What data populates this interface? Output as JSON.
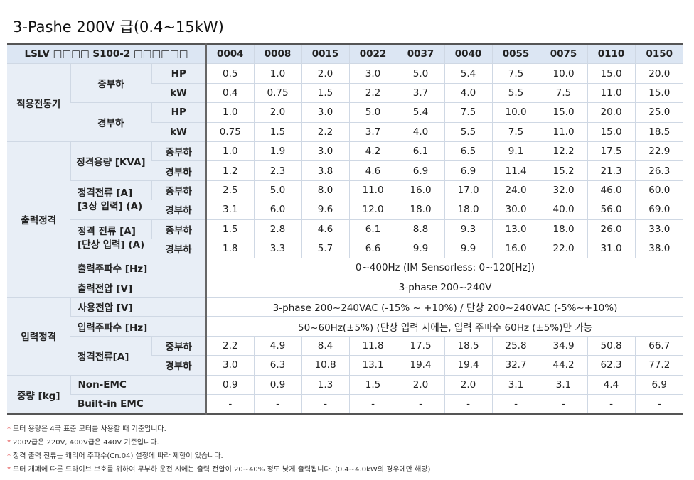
{
  "title": "3-Pashe 200V 급(0.4~15kW)",
  "table": {
    "corner": "LSLV □□□□ S100-2 □□□□□□",
    "models": [
      "0004",
      "0008",
      "0015",
      "0022",
      "0037",
      "0040",
      "0055",
      "0075",
      "0110",
      "0150"
    ],
    "groups": {
      "motor": "적용전동기",
      "output": "출력정격",
      "input": "입력정격",
      "weight": "중량 [kg]"
    },
    "subs": {
      "normal_duty": "중부하",
      "heavy_duty": "경부하",
      "rated_capacity": "정격용량 [KVA]",
      "current_3ph": "정격전류 [A]\n[3상 입력] (A)",
      "current_1ph": "정격 전류 [A]\n[단상 입력] (A)",
      "out_freq": "출력주파수 [Hz]",
      "out_voltage": "출력전압 [V]",
      "in_voltage": "사용전압 [V]",
      "in_freq": "입력주파수 [Hz]",
      "in_current": "정격전류[A]",
      "non_emc": "Non-EMC",
      "builtin_emc": "Built-in EMC",
      "hp": "HP",
      "kw": "kW"
    },
    "rows": {
      "motor_nd_hp": [
        "0.5",
        "1.0",
        "2.0",
        "3.0",
        "5.0",
        "5.4",
        "7.5",
        "10.0",
        "15.0",
        "20.0"
      ],
      "motor_nd_kw": [
        "0.4",
        "0.75",
        "1.5",
        "2.2",
        "3.7",
        "4.0",
        "5.5",
        "7.5",
        "11.0",
        "15.0"
      ],
      "motor_hd_hp": [
        "1.0",
        "2.0",
        "3.0",
        "5.0",
        "5.4",
        "7.5",
        "10.0",
        "15.0",
        "20.0",
        "25.0"
      ],
      "motor_hd_kw": [
        "0.75",
        "1.5",
        "2.2",
        "3.7",
        "4.0",
        "5.5",
        "7.5",
        "11.0",
        "15.0",
        "18.5"
      ],
      "cap_nd": [
        "1.0",
        "1.9",
        "3.0",
        "4.2",
        "6.1",
        "6.5",
        "9.1",
        "12.2",
        "17.5",
        "22.9"
      ],
      "cap_hd": [
        "1.2",
        "2.3",
        "3.8",
        "4.6",
        "6.9",
        "6.9",
        "11.4",
        "15.2",
        "21.3",
        "26.3"
      ],
      "cur3_nd": [
        "2.5",
        "5.0",
        "8.0",
        "11.0",
        "16.0",
        "17.0",
        "24.0",
        "32.0",
        "46.0",
        "60.0"
      ],
      "cur3_hd": [
        "3.1",
        "6.0",
        "9.6",
        "12.0",
        "18.0",
        "18.0",
        "30.0",
        "40.0",
        "56.0",
        "69.0"
      ],
      "cur1_nd": [
        "1.5",
        "2.8",
        "4.6",
        "6.1",
        "8.8",
        "9.3",
        "13.0",
        "18.0",
        "26.0",
        "33.0"
      ],
      "cur1_hd": [
        "1.8",
        "3.3",
        "5.7",
        "6.6",
        "9.9",
        "9.9",
        "16.0",
        "22.0",
        "31.0",
        "38.0"
      ],
      "out_freq": "0~400Hz (IM Sensorless: 0~120[Hz])",
      "out_voltage": "3-phase 200~240V",
      "in_voltage": "3-phase 200~240VAC (-15% ~ +10%) / 단상 200~240VAC (-5%~+10%)",
      "in_freq": "50~60Hz(±5%) (단상 입력 시에는, 입력 주파수 60Hz (±5%)만 가능",
      "in_cur_nd": [
        "2.2",
        "4.9",
        "8.4",
        "11.8",
        "17.5",
        "18.5",
        "25.8",
        "34.9",
        "50.8",
        "66.7"
      ],
      "in_cur_hd": [
        "3.0",
        "6.3",
        "10.8",
        "13.1",
        "19.4",
        "19.4",
        "32.7",
        "44.2",
        "62.3",
        "77.2"
      ],
      "weight_non_emc": [
        "0.9",
        "0.9",
        "1.3",
        "1.5",
        "2.0",
        "2.0",
        "3.1",
        "3.1",
        "4.4",
        "6.9"
      ],
      "weight_emc": [
        "-",
        "-",
        "-",
        "-",
        "-",
        "-",
        "-",
        "-",
        "-",
        "-"
      ]
    }
  },
  "notes": [
    "모터 용량은 4극 표준 모터를 사용할 때 기준입니다.",
    "200V급은 220V, 400V급은 440V 기준입니다.",
    "정격 출력 전류는 캐리어 주파수(Cn.04) 설정에 따라 제한이 있습니다.",
    "모터 개폐에 따른 드라이브 보호를 위하여 무부하 운전 시에는 출력 전압이 20~40% 정도 낮게 출력됩니다. (0.4~4.0kW의 경우에만 해당)"
  ],
  "note_marker": "*"
}
